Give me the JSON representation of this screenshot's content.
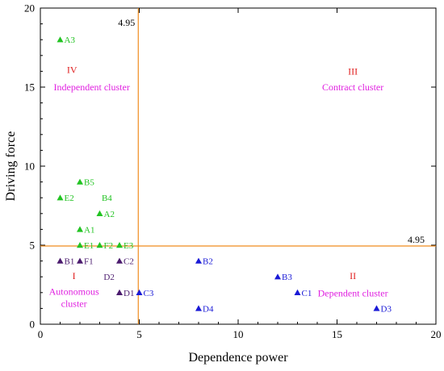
{
  "chart_data": {
    "type": "scatter",
    "xlabel": "Dependence power",
    "ylabel": "Driving force",
    "xlim": [
      0,
      20
    ],
    "ylim": [
      0,
      20
    ],
    "x_ticks": [
      0,
      5,
      10,
      15,
      20
    ],
    "y_ticks": [
      0,
      5,
      10,
      15,
      20
    ],
    "grid": false,
    "thresholds": {
      "x": 4.95,
      "y": 4.95,
      "x_label": "4.95",
      "y_label": "4.95",
      "color": "#f08c1e"
    },
    "points": [
      {
        "label": "A3",
        "x": 1,
        "y": 18,
        "color": "#22c322"
      },
      {
        "label": "B5",
        "x": 2,
        "y": 9,
        "color": "#22c322"
      },
      {
        "label": "E2",
        "x": 1,
        "y": 8,
        "color": "#22c322"
      },
      {
        "label": "A2",
        "x": 3,
        "y": 7,
        "color": "#22c322"
      },
      {
        "label": "A1",
        "x": 2,
        "y": 6,
        "color": "#22c322"
      },
      {
        "label": "E1",
        "x": 2,
        "y": 5,
        "color": "#22c322"
      },
      {
        "label": "F2",
        "x": 3,
        "y": 5,
        "color": "#22c322"
      },
      {
        "label": "E3",
        "x": 4,
        "y": 5,
        "color": "#22c322"
      },
      {
        "label": "B1",
        "x": 1,
        "y": 4,
        "color": "#4b1b6e"
      },
      {
        "label": "F1",
        "x": 2,
        "y": 4,
        "color": "#4b1b6e"
      },
      {
        "label": "C2",
        "x": 4,
        "y": 4,
        "color": "#4b1b6e"
      },
      {
        "label": "D1",
        "x": 4,
        "y": 2,
        "color": "#4b1b6e"
      },
      {
        "label": "C3",
        "x": 5,
        "y": 2,
        "color": "#1a1ad6"
      },
      {
        "label": "B2",
        "x": 8,
        "y": 4,
        "color": "#1a1ad6"
      },
      {
        "label": "D4",
        "x": 8,
        "y": 1,
        "color": "#1a1ad6"
      },
      {
        "label": "B3",
        "x": 12,
        "y": 3,
        "color": "#1a1ad6"
      },
      {
        "label": "C1",
        "x": 13,
        "y": 2,
        "color": "#1a1ad6"
      },
      {
        "label": "D3",
        "x": 17,
        "y": 1,
        "color": "#1a1ad6"
      }
    ],
    "unmarked_labels": [
      {
        "label": "B4",
        "x": 3.1,
        "y": 8,
        "color": "#22c322"
      },
      {
        "label": "D2",
        "x": 3.2,
        "y": 3,
        "color": "#4b1b6e"
      }
    ],
    "annotations": [
      {
        "text": "IV",
        "x": 1.6,
        "y": 15.9,
        "color": "#e02020"
      },
      {
        "text": "Independent cluster",
        "x": 2.6,
        "y": 14.8,
        "color": "#e020e0"
      },
      {
        "text": "III",
        "x": 15.8,
        "y": 15.8,
        "color": "#e02020"
      },
      {
        "text": "Contract cluster",
        "x": 15.8,
        "y": 14.8,
        "color": "#e020e0"
      },
      {
        "text": "I",
        "x": 1.7,
        "y": 2.85,
        "color": "#e02020"
      },
      {
        "text": "Autonomous",
        "x": 1.7,
        "y": 1.85,
        "color": "#e020e0"
      },
      {
        "text": "cluster",
        "x": 1.7,
        "y": 1.1,
        "color": "#e020e0"
      },
      {
        "text": "II",
        "x": 15.8,
        "y": 2.85,
        "color": "#e02020"
      },
      {
        "text": "Dependent cluster",
        "x": 15.8,
        "y": 1.75,
        "color": "#e020e0"
      }
    ]
  }
}
